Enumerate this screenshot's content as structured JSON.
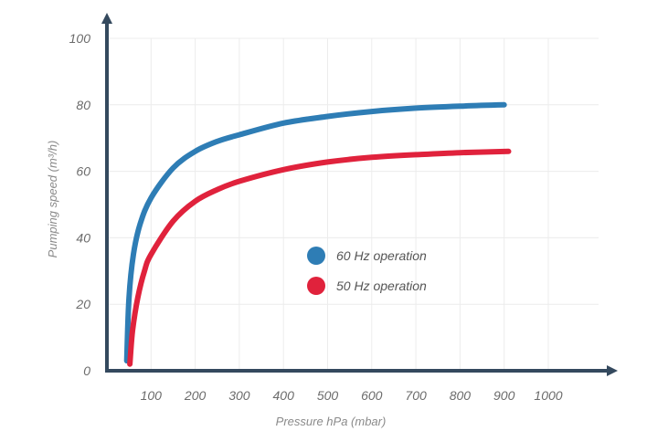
{
  "chart_data": {
    "type": "line",
    "title": "",
    "xlabel": "Pressure hPa (mbar)",
    "ylabel": "Pumping speed (m³/h)",
    "xlim": [
      0,
      1150
    ],
    "ylim": [
      0,
      100
    ],
    "x_ticks": [
      100,
      200,
      300,
      400,
      500,
      600,
      700,
      800,
      900,
      1000
    ],
    "y_ticks": [
      0,
      20,
      40,
      60,
      80,
      100
    ],
    "grid": true,
    "legend_position": "center",
    "series": [
      {
        "name": "60 Hz operation",
        "color": "#2e7db5",
        "x": [
          45,
          50,
          60,
          75,
          100,
          150,
          200,
          250,
          300,
          400,
          500,
          600,
          700,
          800,
          900
        ],
        "y": [
          3,
          22,
          35,
          44,
          52,
          61,
          66,
          69,
          71,
          74.5,
          76.5,
          78,
          79,
          79.6,
          80
        ]
      },
      {
        "name": "50 Hz operation",
        "color": "#e0223c",
        "x": [
          52,
          58,
          70,
          85,
          100,
          150,
          200,
          250,
          300,
          400,
          500,
          600,
          700,
          800,
          910
        ],
        "y": [
          2,
          12,
          22,
          30,
          35,
          45,
          51,
          54.5,
          57,
          60.5,
          62.8,
          64.2,
          65,
          65.6,
          66
        ]
      }
    ],
    "colors": {
      "axis": "#34495e",
      "grid": "#ececec"
    }
  }
}
